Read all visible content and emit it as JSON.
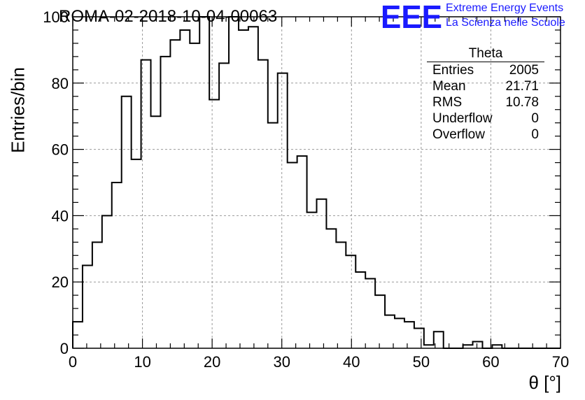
{
  "header": {
    "title": "ROMA-02-2018-10-04-00063",
    "logo_text": "EEE",
    "logo_line1": "Extreme Energy Events",
    "logo_line2": "La Scienza nelle Scuole"
  },
  "stats_box": {
    "title": "Theta",
    "rows": [
      {
        "label": "Entries",
        "value": "2005"
      },
      {
        "label": "Mean",
        "value": "21.71"
      },
      {
        "label": "RMS",
        "value": "10.78"
      },
      {
        "label": "Underflow",
        "value": "0"
      },
      {
        "label": "Overflow",
        "value": "0"
      }
    ]
  },
  "chart_data": {
    "type": "bar",
    "title": "ROMA-02-2018-10-04-00063",
    "xlabel": "θ [°]",
    "ylabel": "Entries/bin",
    "xlim": [
      0,
      70
    ],
    "ylim": [
      0,
      100
    ],
    "bin_width": 1.4,
    "grid": true,
    "x_ticks": [
      0,
      10,
      20,
      30,
      40,
      50,
      60,
      70
    ],
    "y_ticks": [
      0,
      20,
      40,
      60,
      80,
      100
    ],
    "values": [
      8,
      25,
      32,
      40,
      50,
      76,
      57,
      87,
      70,
      88,
      93,
      96,
      92,
      100,
      75,
      86,
      100,
      96,
      97,
      87,
      68,
      83,
      56,
      58,
      41,
      45,
      36,
      32,
      28,
      23,
      21,
      16,
      10,
      9,
      8,
      6,
      1,
      5,
      0,
      0,
      1,
      2,
      0,
      1,
      0,
      0,
      0,
      0,
      0,
      0
    ],
    "line_color": "#000000",
    "grid_color": "#999999"
  }
}
